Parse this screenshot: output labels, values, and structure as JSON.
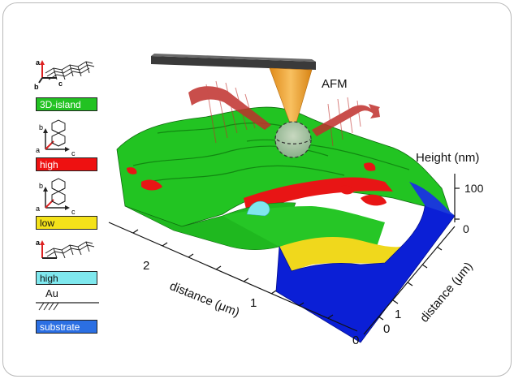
{
  "legend": {
    "items": [
      {
        "label": "3D-island",
        "color": "#22c222",
        "text_color": "#ffffff"
      },
      {
        "label": "high",
        "color": "#ee1111",
        "text_color": "#ffffff"
      },
      {
        "label": "low",
        "color": "#f4e21a",
        "text_color": "#111111"
      },
      {
        "label": "high",
        "color": "#7fe8ee",
        "text_color": "#111111"
      },
      {
        "label": "substrate",
        "color": "#2b6fe3",
        "text_color": "#ffffff"
      }
    ],
    "axis_letters": {
      "a": "a",
      "b": "b",
      "c": "c"
    },
    "au_label": "Au"
  },
  "figure": {
    "afm_label": "AFM",
    "height_title": "Height (nm)",
    "height_ticks": [
      "100",
      "0"
    ],
    "distance_left_label": "distance (μm)",
    "distance_left_ticks": [
      "2",
      "1",
      "0"
    ],
    "distance_right_label": "distance (μm)",
    "distance_right_ticks": [
      "1",
      "0"
    ]
  },
  "colors": {
    "green": "#22c422",
    "red": "#e81515",
    "yellow": "#f0d81c",
    "blue": "#0b1fd6",
    "cyan": "#7fe6ee",
    "cantilever": "#3a3a3a",
    "tip": "#f0a830",
    "wave": "#c0302c"
  }
}
